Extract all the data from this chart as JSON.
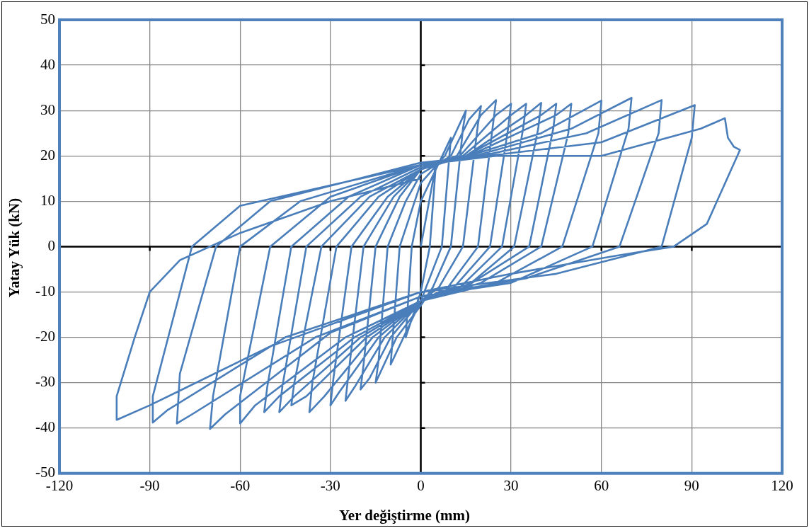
{
  "chart_data": {
    "type": "line",
    "xlabel": "Yer değiştirme (mm)",
    "ylabel": "Yatay Yük (kN)",
    "xlim": [
      -120,
      120
    ],
    "xticks": [
      -120,
      -90,
      -60,
      -30,
      0,
      30,
      60,
      90,
      120
    ],
    "ylim": [
      -50,
      50
    ],
    "yticks": [
      -50,
      -40,
      -30,
      -20,
      -10,
      0,
      10,
      20,
      30,
      40,
      50
    ],
    "grid": true,
    "legend": false,
    "marker": "none",
    "line_style": "solid",
    "series": [
      {
        "color": "#4a7ebb",
        "x": [
          0,
          5,
          3,
          0,
          -5,
          -3,
          0,
          10,
          7,
          0,
          -10,
          -7,
          0,
          8,
          15,
          14,
          10,
          4,
          0,
          -8,
          -15,
          -14,
          -11,
          -5,
          0,
          10,
          16,
          20,
          19,
          14,
          6,
          0,
          -10,
          -17,
          -20,
          -19,
          -15,
          -7,
          0,
          12,
          20,
          25,
          24,
          19,
          9,
          0,
          -12,
          -22,
          -25,
          -24,
          -19,
          -9,
          0,
          13,
          25,
          30,
          29,
          23,
          11,
          0,
          -14,
          -27,
          -30,
          -29,
          -23,
          -11,
          0,
          14,
          30,
          35,
          34,
          27,
          13,
          0,
          -16,
          -32,
          -37,
          -36,
          -28,
          -14,
          0,
          15,
          35,
          40,
          39,
          31,
          15,
          0,
          -18,
          -38,
          -43,
          -42,
          -33,
          -17,
          0,
          15,
          40,
          45,
          44,
          36,
          17,
          0,
          -20,
          -42,
          -47,
          -46,
          -38,
          -20,
          0,
          16,
          45,
          50,
          49,
          40,
          20,
          0,
          -22,
          -47,
          -52,
          -51,
          -43,
          -24,
          0,
          16,
          40,
          60,
          59,
          47,
          25,
          0,
          -25,
          -55,
          -60,
          -60,
          -50,
          -30,
          0,
          18,
          50,
          70,
          69,
          57,
          30,
          0,
          -30,
          -65,
          -70,
          -69,
          -60,
          -40,
          0,
          20,
          55,
          80,
          79,
          66,
          35,
          0,
          -35,
          -76,
          -81,
          -80,
          -68,
          -50,
          0,
          22,
          60,
          91,
          90,
          80,
          45,
          0,
          -45,
          -84,
          -89,
          -89,
          -76,
          -60,
          0,
          25,
          60,
          93,
          101,
          102,
          104,
          106,
          95,
          84,
          65,
          30,
          0,
          -50,
          -90,
          -101,
          -101,
          -95,
          -90,
          -80,
          -60,
          -30,
          0
        ],
        "values": [
          0,
          18,
          0,
          -10,
          -20,
          0,
          10,
          24,
          0,
          -12,
          -26,
          0,
          14,
          20,
          30,
          26,
          0,
          -9,
          -13,
          -20,
          -30,
          -25,
          0,
          10,
          16,
          20,
          28,
          31,
          27,
          0,
          -9,
          -12,
          -20,
          -29,
          -31.5,
          -26,
          0,
          11,
          17,
          20,
          29,
          32.3,
          27,
          0,
          -9,
          -12,
          -20,
          -31,
          -34,
          -28,
          0,
          11,
          17,
          20,
          29,
          31.5,
          26,
          0,
          -9,
          -12,
          -20,
          -32,
          -35,
          -29,
          0,
          11,
          17,
          20,
          29,
          31.5,
          26,
          0,
          -9,
          -12,
          -20,
          -33,
          -36.5,
          -30,
          0,
          11,
          17,
          20,
          29,
          31.7,
          26,
          0,
          -9,
          -12,
          -20,
          -33,
          -35,
          -30,
          0,
          11,
          17,
          20,
          29,
          31.5,
          26,
          0,
          -8,
          -12,
          -20,
          -33,
          -36.5,
          -31,
          0,
          11,
          17.5,
          20,
          29,
          31.5,
          25,
          0,
          -8,
          -12,
          -20,
          -33,
          -36.5,
          -31,
          0,
          11,
          18,
          20,
          25,
          32.2,
          25,
          0,
          -8,
          -12,
          -20,
          -35,
          -39,
          -33,
          0,
          11,
          18,
          20,
          26,
          32.8,
          26,
          0,
          -8,
          -11,
          -19,
          -37,
          -40.2,
          -33,
          0,
          10,
          18,
          20,
          25,
          32.3,
          25,
          0,
          -7,
          -11,
          -20,
          -37,
          -39,
          -28,
          0,
          10,
          18.5,
          20,
          23,
          31.2,
          24,
          0,
          -6,
          -10,
          -20,
          -36,
          -38.8,
          -33,
          0,
          9,
          18,
          20,
          20,
          26,
          28.3,
          24,
          22,
          21.3,
          5,
          0,
          -2,
          -6,
          -10,
          -22,
          -35,
          -38.2,
          -33,
          -20,
          -10,
          -3,
          3,
          10,
          15
        ]
      }
    ]
  }
}
